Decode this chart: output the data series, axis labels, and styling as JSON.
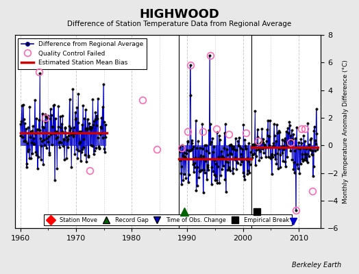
{
  "title": "HIGHWOOD",
  "subtitle": "Difference of Station Temperature Data from Regional Average",
  "ylabel": "Monthly Temperature Anomaly Difference (°C)",
  "xlabel_credit": "Berkeley Earth",
  "xlim": [
    1959,
    2014
  ],
  "ylim": [
    -6,
    8
  ],
  "yticks": [
    -6,
    -4,
    -2,
    0,
    2,
    4,
    6,
    8
  ],
  "xticks": [
    1960,
    1970,
    1980,
    1990,
    2000,
    2010
  ],
  "background_color": "#e8e8e8",
  "plot_bg_color": "#ffffff",
  "grid_color": "#cccccc",
  "segments_period1": {
    "start": 1960.0,
    "end": 1975.5,
    "bias": 0.9
  },
  "segments_period2": {
    "start": 1988.5,
    "end": 2001.5,
    "bias": -1.0
  },
  "segments_period3": {
    "start": 2001.5,
    "end": 2013.5,
    "bias": -0.15
  },
  "vertical_lines": [
    1988.5,
    2001.5
  ],
  "record_gap_x": 1989.5,
  "record_gap_y": -4.8,
  "empirical_break_x": 2002.5,
  "empirical_break_y": -4.8,
  "time_obs_change_x": 2009.0,
  "time_obs_change_y": -5.5,
  "main_line_color": "#0000cc",
  "bias_line_color": "#cc0000",
  "qc_marker_color": "#ff69b4",
  "seed": 42
}
